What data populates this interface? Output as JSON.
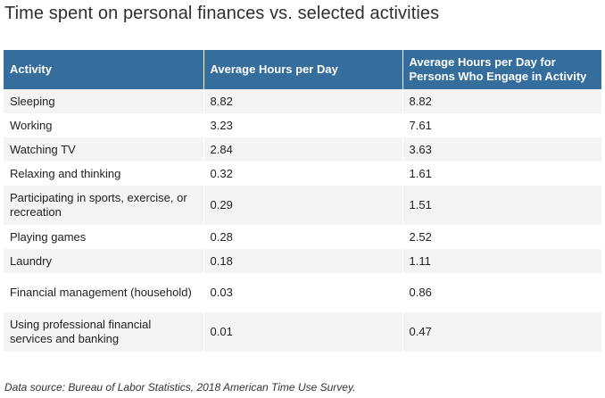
{
  "title": "Time spent on personal finances vs. selected activities",
  "table": {
    "headers": [
      "Activity",
      "Average Hours per Day",
      "Average Hours per Day for Persons Who Engage in Activity"
    ],
    "rows": [
      [
        "Sleeping",
        "8.82",
        "8.82"
      ],
      [
        "Working",
        "3.23",
        "7.61"
      ],
      [
        "Watching TV",
        "2.84",
        "3.63"
      ],
      [
        "Relaxing and thinking",
        "0.32",
        "1.61"
      ],
      [
        "Participating in sports, exercise, or recreation",
        "0.29",
        "1.51"
      ],
      [
        "Playing games",
        "0.28",
        "2.52"
      ],
      [
        "Laundry",
        "0.18",
        "1.11"
      ],
      [
        "Financial management (household)",
        "0.03",
        "0.86"
      ],
      [
        "Using professional financial services and banking",
        "0.01",
        "0.47"
      ]
    ]
  },
  "footnote": "Data source: Bureau of Labor Statistics, 2018 American Time Use Survey.",
  "colors": {
    "header_bg": "#356d9d",
    "stripe_bg": "#f4f4f4"
  }
}
